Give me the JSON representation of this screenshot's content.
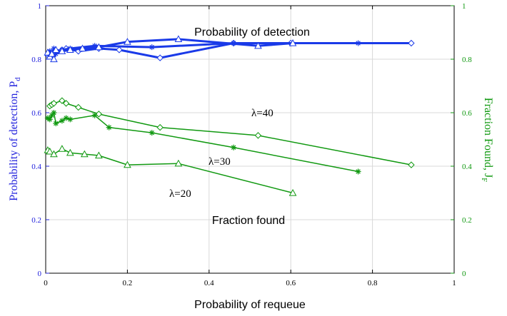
{
  "chart_data": {
    "type": "line",
    "xlabel": "Probability of requeue",
    "ylabel_left": "Probability of detection, P",
    "ylabel_left_sub": "d",
    "ylabel_right": "Fraction Found, J",
    "ylabel_right_sub": "F",
    "xlim": [
      0,
      1
    ],
    "ylim_left": [
      0,
      1
    ],
    "ylim_right": [
      0,
      1
    ],
    "x_ticks": [
      "0",
      "0.2",
      "0.4",
      "0.6",
      "0.8",
      "1"
    ],
    "y_ticks_left": [
      "0",
      "0.2",
      "0.4",
      "0.6",
      "0.8",
      "1"
    ],
    "y_ticks_right": [
      "0",
      "0.2",
      "0.4",
      "0.6",
      "0.8",
      "1"
    ],
    "grid": true,
    "colors": {
      "left_axis": "#2222dd",
      "right_axis": "#119911",
      "pd_series": "#1a3ae8",
      "ff_series": "#119911"
    },
    "annotations": {
      "pd_label": "Probability of detection",
      "ff_label": "Fraction found",
      "lambda40": "λ=40",
      "lambda30": "λ=30",
      "lambda20": "λ=20"
    },
    "series": [
      {
        "group": "pd",
        "axis": "left",
        "marker": "diamond",
        "x": [
          0.005,
          0.01,
          0.015,
          0.02,
          0.025,
          0.04,
          0.05,
          0.08,
          0.13,
          0.18,
          0.28,
          0.46,
          0.6,
          0.895
        ],
        "y": [
          0.815,
          0.825,
          0.81,
          0.82,
          0.83,
          0.835,
          0.84,
          0.83,
          0.84,
          0.835,
          0.805,
          0.86,
          0.86,
          0.86
        ]
      },
      {
        "group": "pd",
        "axis": "left",
        "marker": "star",
        "x": [
          0.005,
          0.01,
          0.015,
          0.02,
          0.025,
          0.04,
          0.06,
          0.12,
          0.26,
          0.46,
          0.765
        ],
        "y": [
          0.82,
          0.83,
          0.815,
          0.84,
          0.82,
          0.835,
          0.84,
          0.85,
          0.845,
          0.86,
          0.86
        ]
      },
      {
        "group": "pd",
        "axis": "left",
        "marker": "triangle",
        "x": [
          0.005,
          0.01,
          0.015,
          0.02,
          0.025,
          0.04,
          0.06,
          0.09,
          0.13,
          0.2,
          0.325,
          0.52,
          0.605
        ],
        "y": [
          0.825,
          0.81,
          0.82,
          0.8,
          0.835,
          0.83,
          0.835,
          0.84,
          0.845,
          0.865,
          0.875,
          0.85,
          0.86
        ]
      },
      {
        "group": "ff",
        "axis": "right",
        "marker": "diamond",
        "x": [
          0.01,
          0.015,
          0.02,
          0.04,
          0.05,
          0.08,
          0.13,
          0.28,
          0.52,
          0.895
        ],
        "y": [
          0.625,
          0.63,
          0.635,
          0.645,
          0.635,
          0.62,
          0.595,
          0.545,
          0.515,
          0.405
        ]
      },
      {
        "group": "ff",
        "axis": "right",
        "marker": "star",
        "x": [
          0.005,
          0.01,
          0.015,
          0.02,
          0.025,
          0.04,
          0.05,
          0.06,
          0.12,
          0.155,
          0.26,
          0.46,
          0.765
        ],
        "y": [
          0.58,
          0.575,
          0.59,
          0.6,
          0.56,
          0.57,
          0.58,
          0.575,
          0.59,
          0.545,
          0.525,
          0.47,
          0.38
        ]
      },
      {
        "group": "ff",
        "axis": "right",
        "marker": "triangle",
        "x": [
          0.005,
          0.01,
          0.02,
          0.04,
          0.06,
          0.095,
          0.13,
          0.2,
          0.325,
          0.605
        ],
        "y": [
          0.46,
          0.455,
          0.445,
          0.465,
          0.45,
          0.445,
          0.44,
          0.405,
          0.41,
          0.3
        ]
      }
    ]
  }
}
